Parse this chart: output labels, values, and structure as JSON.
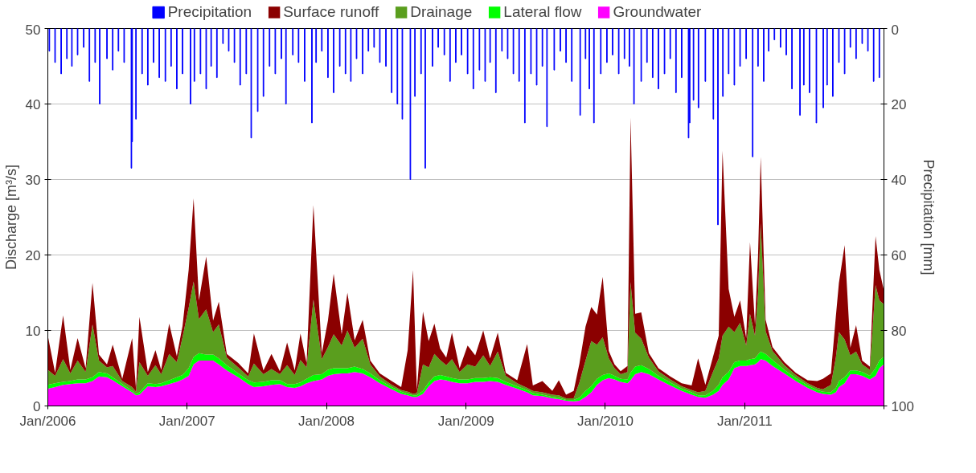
{
  "chart_data": {
    "type": "area",
    "stacked": true,
    "ylabel": "Discharge [m³/s]",
    "y2label": "Precipitation [mm]",
    "xlim": [
      "2006-01-01",
      "2012-01-01"
    ],
    "xticks": [
      {
        "value": "2006-01-01",
        "label": "Jan/2006"
      },
      {
        "value": "2007-01-01",
        "label": "Jan/2007"
      },
      {
        "value": "2008-01-01",
        "label": "Jan/2008"
      },
      {
        "value": "2009-01-01",
        "label": "Jan/2009"
      },
      {
        "value": "2010-01-01",
        "label": "Jan/2010"
      },
      {
        "value": "2011-01-01",
        "label": "Jan/2011"
      },
      {
        "value": "2012-01-01",
        "label": null
      }
    ],
    "ylim": [
      0,
      50
    ],
    "yticks": [
      0,
      10,
      20,
      30,
      40,
      50
    ],
    "y2lim": [
      100,
      0
    ],
    "y2ticks": [
      0,
      20,
      40,
      60,
      80,
      100
    ],
    "grid": "y",
    "legend": "top",
    "x": [
      "2006-01-01",
      "2006-01-20",
      "2006-02-10",
      "2006-03-01",
      "2006-03-20",
      "2006-04-10",
      "2006-04-28",
      "2006-05-15",
      "2006-06-05",
      "2006-06-20",
      "2006-07-15",
      "2006-08-10",
      "2006-08-20",
      "2006-08-29",
      "2006-09-20",
      "2006-10-10",
      "2006-10-25",
      "2006-11-15",
      "2006-12-05",
      "2006-12-20",
      "2007-01-05",
      "2007-01-18",
      "2007-02-01",
      "2007-02-20",
      "2007-03-10",
      "2007-03-25",
      "2007-04-15",
      "2007-05-15",
      "2007-06-10",
      "2007-06-25",
      "2007-07-20",
      "2007-08-10",
      "2007-09-01",
      "2007-09-20",
      "2007-10-10",
      "2007-10-25",
      "2007-11-10",
      "2007-11-28",
      "2007-12-20",
      "2008-01-05",
      "2008-01-20",
      "2008-02-10",
      "2008-02-25",
      "2008-03-15",
      "2008-04-05",
      "2008-04-25",
      "2008-05-20",
      "2008-06-20",
      "2008-07-15",
      "2008-08-01",
      "2008-08-15",
      "2008-08-25",
      "2008-09-10",
      "2008-09-25",
      "2008-10-10",
      "2008-10-25",
      "2008-11-10",
      "2008-11-25",
      "2008-12-15",
      "2009-01-05",
      "2009-01-25",
      "2009-02-15",
      "2009-03-05",
      "2009-03-25",
      "2009-04-15",
      "2009-05-15",
      "2009-06-10",
      "2009-06-25",
      "2009-07-20",
      "2009-08-15",
      "2009-09-01",
      "2009-09-20",
      "2009-10-10",
      "2009-10-25",
      "2009-11-10",
      "2009-11-25",
      "2009-12-10",
      "2009-12-25",
      "2010-01-10",
      "2010-01-25",
      "2010-02-10",
      "2010-02-28",
      "2010-03-08",
      "2010-03-20",
      "2010-04-05",
      "2010-04-25",
      "2010-05-20",
      "2010-06-20",
      "2010-07-20",
      "2010-08-15",
      "2010-09-01",
      "2010-09-20",
      "2010-10-10",
      "2010-10-25",
      "2010-11-04",
      "2010-11-20",
      "2010-12-05",
      "2010-12-20",
      "2011-01-05",
      "2011-01-15",
      "2011-01-28",
      "2011-02-05",
      "2011-02-12",
      "2011-02-25",
      "2011-03-15",
      "2011-04-15",
      "2011-05-15",
      "2011-06-15",
      "2011-07-10",
      "2011-07-25",
      "2011-08-15",
      "2011-08-28",
      "2011-09-05",
      "2011-09-20",
      "2011-10-05",
      "2011-10-20",
      "2011-11-05",
      "2011-11-25",
      "2011-12-10",
      "2011-12-20",
      "2011-12-31"
    ],
    "series": [
      {
        "name": "Precipitation",
        "type": "bar",
        "axis": "y2",
        "color": "#0000ff",
        "x": [
          "2006-01-05",
          "2006-01-20",
          "2006-02-05",
          "2006-02-20",
          "2006-03-05",
          "2006-03-20",
          "2006-04-05",
          "2006-04-20",
          "2006-05-05",
          "2006-05-17",
          "2006-06-05",
          "2006-06-20",
          "2006-07-05",
          "2006-07-20",
          "2006-08-08",
          "2006-08-10",
          "2006-08-20",
          "2006-09-05",
          "2006-09-20",
          "2006-10-05",
          "2006-10-20",
          "2006-11-05",
          "2006-11-20",
          "2006-12-05",
          "2006-12-20",
          "2007-01-10",
          "2007-01-20",
          "2007-02-05",
          "2007-02-20",
          "2007-03-05",
          "2007-03-20",
          "2007-04-05",
          "2007-04-20",
          "2007-05-05",
          "2007-05-20",
          "2007-06-05",
          "2007-06-18",
          "2007-07-05",
          "2007-07-20",
          "2007-08-05",
          "2007-08-20",
          "2007-09-05",
          "2007-09-17",
          "2007-10-05",
          "2007-10-20",
          "2007-11-05",
          "2007-11-24",
          "2007-12-05",
          "2007-12-20",
          "2008-01-05",
          "2008-01-20",
          "2008-02-05",
          "2008-02-20",
          "2008-03-05",
          "2008-03-20",
          "2008-04-05",
          "2008-04-20",
          "2008-05-05",
          "2008-05-20",
          "2008-06-05",
          "2008-06-20",
          "2008-07-05",
          "2008-07-18",
          "2008-08-08",
          "2008-08-20",
          "2008-09-05",
          "2008-09-16",
          "2008-10-05",
          "2008-10-20",
          "2008-11-05",
          "2008-11-20",
          "2008-12-05",
          "2008-12-20",
          "2009-01-05",
          "2009-01-20",
          "2009-02-05",
          "2009-02-20",
          "2009-03-05",
          "2009-03-20",
          "2009-04-05",
          "2009-04-20",
          "2009-05-05",
          "2009-05-20",
          "2009-06-04",
          "2009-06-20",
          "2009-07-05",
          "2009-07-20",
          "2009-08-01",
          "2009-08-20",
          "2009-09-05",
          "2009-09-20",
          "2009-10-05",
          "2009-10-27",
          "2009-11-10",
          "2009-11-20",
          "2009-12-02",
          "2009-12-20",
          "2010-01-05",
          "2010-01-20",
          "2010-02-05",
          "2010-02-20",
          "2010-03-05",
          "2010-03-17",
          "2010-04-05",
          "2010-04-20",
          "2010-05-05",
          "2010-05-20",
          "2010-06-05",
          "2010-06-20",
          "2010-07-05",
          "2010-07-20",
          "2010-08-07",
          "2010-08-10",
          "2010-08-20",
          "2010-09-02",
          "2010-09-20",
          "2010-10-11",
          "2010-10-23",
          "2010-11-05",
          "2010-11-20",
          "2010-12-05",
          "2010-12-20",
          "2011-01-05",
          "2011-01-22",
          "2011-02-05",
          "2011-02-20",
          "2011-03-05",
          "2011-03-20",
          "2011-04-05",
          "2011-04-20",
          "2011-05-05",
          "2011-05-26",
          "2011-06-05",
          "2011-06-20",
          "2011-07-08",
          "2011-07-26",
          "2011-08-05",
          "2011-08-20",
          "2011-09-05",
          "2011-09-20",
          "2011-10-05",
          "2011-10-20",
          "2011-11-05",
          "2011-11-20",
          "2011-12-05",
          "2011-12-20"
        ],
        "values": [
          6,
          9,
          12,
          8,
          10,
          7,
          5,
          14,
          9,
          20,
          8,
          11,
          6,
          9,
          37,
          30,
          24,
          12,
          15,
          9,
          13,
          14,
          10,
          16,
          12,
          20,
          14,
          12,
          16,
          10,
          13,
          4,
          6,
          9,
          15,
          12,
          29,
          22,
          18,
          10,
          12,
          8,
          20,
          7,
          9,
          14,
          25,
          9,
          6,
          13,
          17,
          10,
          12,
          14,
          8,
          12,
          6,
          5,
          9,
          10,
          17,
          20,
          24,
          40,
          18,
          12,
          37,
          10,
          5,
          7,
          14,
          9,
          7,
          12,
          16,
          11,
          14,
          9,
          17,
          6,
          8,
          12,
          14,
          25,
          12,
          15,
          10,
          26,
          11,
          6,
          9,
          14,
          23,
          8,
          16,
          25,
          12,
          9,
          7,
          12,
          8,
          10,
          20,
          14,
          9,
          13,
          16,
          12,
          8,
          17,
          13,
          29,
          25,
          19,
          21,
          14,
          24,
          52,
          18,
          12,
          15,
          10,
          8,
          34,
          10,
          14,
          6,
          3,
          5,
          7,
          16,
          23,
          15,
          17,
          25,
          21,
          15,
          18,
          9,
          12,
          5,
          8,
          4,
          6,
          14,
          13
        ]
      },
      {
        "name": "Groundwater",
        "color": "#ff00ff",
        "values": [
          2.3,
          2.5,
          2.8,
          2.9,
          3.0,
          3.0,
          3.3,
          3.9,
          3.8,
          3.4,
          2.6,
          1.8,
          1.4,
          1.5,
          2.6,
          2.5,
          2.6,
          2.9,
          3.2,
          3.5,
          4.0,
          5.5,
          6.0,
          6.0,
          6.0,
          5.5,
          4.7,
          3.8,
          2.9,
          2.5,
          2.6,
          2.8,
          2.9,
          2.5,
          2.4,
          2.6,
          3.0,
          3.3,
          3.5,
          4.0,
          4.2,
          4.3,
          4.3,
          4.5,
          4.3,
          3.8,
          3.0,
          2.2,
          1.6,
          1.4,
          1.2,
          1.2,
          1.6,
          2.6,
          3.3,
          3.5,
          3.4,
          3.2,
          3.0,
          3.0,
          3.2,
          3.2,
          3.3,
          3.2,
          2.8,
          2.3,
          1.8,
          1.4,
          1.3,
          1.0,
          0.9,
          0.7,
          0.6,
          0.7,
          1.2,
          1.8,
          2.8,
          3.4,
          3.7,
          3.5,
          3.2,
          3.0,
          3.4,
          4.2,
          4.5,
          4.2,
          3.5,
          2.7,
          2.0,
          1.5,
          1.2,
          1.1,
          1.5,
          2.0,
          2.8,
          3.5,
          5.0,
          5.3,
          5.3,
          5.4,
          5.5,
          5.8,
          6.2,
          6.0,
          5.3,
          4.3,
          3.3,
          2.4,
          1.8,
          1.6,
          1.5,
          1.8,
          2.5,
          3.0,
          4.2,
          4.2,
          4.0,
          3.5,
          4.0,
          5.0,
          5.5
        ]
      },
      {
        "name": "Lateral flow",
        "color": "#00ff00",
        "values": [
          0.5,
          0.5,
          0.4,
          0.4,
          0.5,
          0.5,
          0.5,
          0.6,
          0.5,
          0.4,
          0.3,
          0.2,
          0.2,
          0.3,
          0.4,
          0.4,
          0.4,
          0.5,
          0.6,
          0.6,
          1.0,
          1.0,
          1.0,
          0.8,
          0.8,
          0.8,
          0.7,
          0.5,
          0.5,
          0.6,
          0.6,
          0.6,
          0.5,
          0.4,
          0.5,
          0.5,
          0.6,
          0.8,
          0.7,
          0.8,
          0.8,
          0.7,
          0.7,
          0.7,
          0.6,
          0.5,
          0.4,
          0.3,
          0.3,
          0.2,
          0.2,
          0.2,
          0.4,
          0.5,
          0.6,
          0.6,
          0.5,
          0.5,
          0.5,
          0.5,
          0.5,
          0.5,
          0.5,
          0.5,
          0.4,
          0.3,
          0.3,
          0.3,
          0.2,
          0.2,
          0.2,
          0.1,
          0.2,
          0.4,
          0.8,
          0.8,
          0.8,
          0.7,
          0.6,
          0.5,
          0.4,
          0.5,
          1.0,
          1.0,
          0.9,
          0.7,
          0.5,
          0.4,
          0.3,
          0.3,
          0.2,
          0.3,
          0.5,
          0.8,
          1.0,
          1.0,
          0.8,
          0.7,
          0.7,
          0.8,
          0.8,
          1.0,
          1.0,
          0.9,
          0.8,
          0.5,
          0.4,
          0.3,
          0.3,
          0.3,
          0.3,
          0.6,
          0.8,
          0.8,
          0.5,
          0.5,
          0.5,
          0.5,
          1.0,
          1.0,
          1.0
        ]
      },
      {
        "name": "Drainage",
        "color": "#5a9e1e",
        "values": [
          2.0,
          1.0,
          3.0,
          1.0,
          2.5,
          1.0,
          7.0,
          1.5,
          0.8,
          1.5,
          0.4,
          0.5,
          0.3,
          4.0,
          1.0,
          2.5,
          1.2,
          3.5,
          2.0,
          5.0,
          8.0,
          10,
          4.5,
          6.0,
          3.0,
          4.5,
          1.0,
          0.8,
          0.5,
          2.5,
          1.0,
          1.5,
          0.8,
          2.5,
          1.2,
          3.0,
          1.5,
          10.0,
          2.0,
          3.0,
          4.5,
          3.0,
          5.0,
          2.5,
          4.0,
          1.2,
          0.5,
          0.3,
          0.2,
          0.3,
          0.2,
          0.3,
          3.5,
          2.0,
          3.0,
          2.0,
          1.5,
          2.5,
          1.0,
          2.0,
          1.5,
          3.0,
          1.5,
          3.5,
          0.8,
          0.4,
          0.3,
          0.3,
          0.3,
          0.3,
          0.3,
          0.2,
          0.2,
          2.0,
          4.0,
          6.0,
          4.5,
          5.0,
          2.0,
          1.0,
          0.6,
          1.0,
          12.0,
          4.5,
          3.5,
          1.5,
          0.6,
          0.4,
          0.3,
          0.3,
          0.4,
          0.6,
          2.5,
          3.5,
          5.5,
          6.0,
          4.0,
          5.0,
          2.0,
          6.0,
          3.0,
          8.0,
          17.0,
          3.0,
          1.2,
          0.6,
          0.4,
          0.3,
          0.3,
          0.3,
          1.0,
          4.0,
          6.5,
          5.0,
          2.0,
          2.5,
          1.0,
          0.8,
          11.0,
          8.0,
          7.0
        ]
      },
      {
        "name": "Surface runoff",
        "color": "#8b0000",
        "values": [
          4.5,
          0.4,
          5.8,
          0.5,
          3.0,
          0.5,
          5.5,
          0.8,
          0.4,
          2.8,
          0.3,
          6.5,
          0.4,
          6.0,
          0.5,
          2.0,
          0.6,
          4.0,
          0.8,
          1.5,
          5.0,
          11,
          2.5,
          7.0,
          1.5,
          3.0,
          0.5,
          0.6,
          0.4,
          4.0,
          0.5,
          2.0,
          0.4,
          3.0,
          0.6,
          3.5,
          0.6,
          12.5,
          0.8,
          3.5,
          8.0,
          1.5,
          5.0,
          1.0,
          2.5,
          0.5,
          0.4,
          0.5,
          0.4,
          5.5,
          16.4,
          0.4,
          7.0,
          3.5,
          4.0,
          1.5,
          1.0,
          3.5,
          0.5,
          2.5,
          1.5,
          3.3,
          1.0,
          2.5,
          0.4,
          0.4,
          5.8,
          0.7,
          1.5,
          0.5,
          2.0,
          0.5,
          1.0,
          2.5,
          4.5,
          4.5,
          4.0,
          8.0,
          1.0,
          0.5,
          0.4,
          0.8,
          21.8,
          2.5,
          3.5,
          0.6,
          0.4,
          0.4,
          0.4,
          0.6,
          4.5,
          0.8,
          2.0,
          3.0,
          24.5,
          5.0,
          2.0,
          3.0,
          1.0,
          9.5,
          1.5,
          5.0,
          8.8,
          1.5,
          0.5,
          0.4,
          0.3,
          0.4,
          0.9,
          1.4,
          1.5,
          5.5,
          6.5,
          12.5,
          1.0,
          3.5,
          0.5,
          0.4,
          6.5,
          4.0,
          2.0
        ]
      }
    ]
  }
}
